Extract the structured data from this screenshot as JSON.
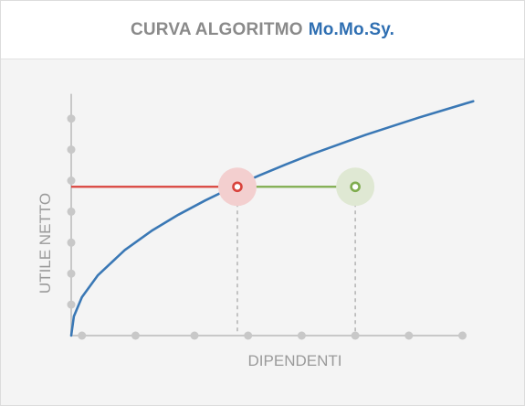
{
  "header": {
    "title_main": "CURVA ALGORITMO",
    "title_brand": "Mo.Mo.Sy."
  },
  "colors": {
    "axis": "#c8c8c8",
    "axis_label": "#9a9a9a",
    "curve": "#3a78b5",
    "red": "#d9433c",
    "red_halo": "#f3cfcf",
    "green": "#7fac4e",
    "green_halo": "#dfe8d3",
    "dashed": "#b7b7b7",
    "title_grey": "#8a8a8a",
    "title_blue": "#2f6fb2"
  },
  "chart_data": {
    "type": "line",
    "xlabel": "DIPENDENTI",
    "ylabel": "UTILE NETTO",
    "xlim": [
      0,
      7.5
    ],
    "ylim": [
      0,
      7.2
    ],
    "x_ticks": [
      0.2,
      1.2,
      2.3,
      3.3,
      4.3,
      5.3,
      6.3,
      7.3
    ],
    "y_ticks": [
      1,
      2,
      3,
      4,
      5,
      6,
      7
    ],
    "tick_labels_shown": false,
    "grid": false,
    "series": [
      {
        "name": "",
        "x": [
          0,
          0.05,
          0.2,
          0.5,
          1,
          1.5,
          2,
          2.5,
          3,
          3.5,
          4,
          4.5,
          5,
          5.5,
          6,
          6.5,
          7,
          7.5
        ],
        "y": [
          0,
          0.62,
          1.24,
          1.95,
          2.76,
          3.38,
          3.9,
          4.36,
          4.78,
          5.16,
          5.52,
          5.86,
          6.17,
          6.48,
          6.76,
          7.04,
          7.3,
          7.56
        ]
      }
    ],
    "reference_line": {
      "y": 4.8,
      "x_start": 0,
      "x_red_end": 3.1,
      "x_green_end": 5.3
    },
    "markers": [
      {
        "label": "",
        "x": 3.1,
        "y": 4.8,
        "color": "red"
      },
      {
        "label": "",
        "x": 5.3,
        "y": 4.8,
        "color": "green"
      }
    ]
  }
}
